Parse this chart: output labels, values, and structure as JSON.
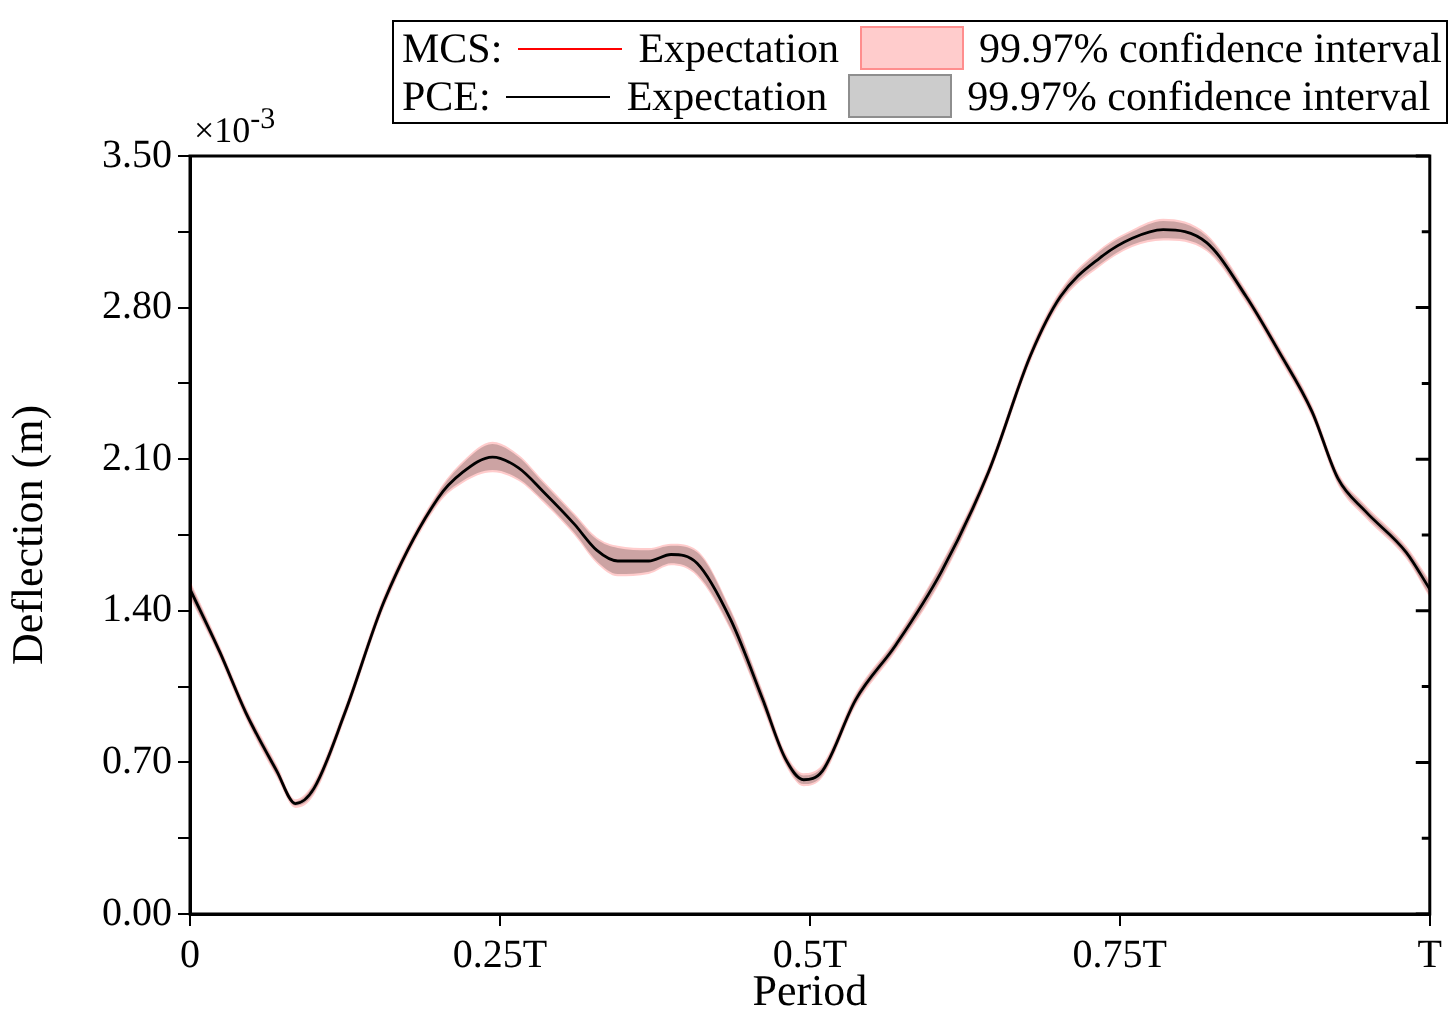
{
  "chart_data": {
    "type": "line",
    "xlabel": "Period",
    "ylabel": "Deflection (m)",
    "annotations": [
      "×10$^{-3}$",
      "Expectation",
      "99.97% confidence interval",
      "Expectation",
      "99.97% confidence interval"
    ],
    "legend": "top",
    "grid": false,
    "xlim": [
      0,
      1
    ],
    "xticks": [
      {
        "value": 0,
        "label": "0"
      },
      {
        "value": 0.25,
        "label": "0.25T"
      },
      {
        "value": 0.5,
        "label": "0.5T"
      },
      {
        "value": 0.75,
        "label": "0.75T"
      },
      {
        "value": 1,
        "label": "T"
      }
    ],
    "ylim": [
      0,
      3.5
    ],
    "yticks": [
      {
        "value": 0,
        "label": "0.00"
      },
      {
        "value": 0.35,
        "label": null
      },
      {
        "value": 0.7,
        "label": "0.70"
      },
      {
        "value": 1.05,
        "label": null
      },
      {
        "value": 1.4,
        "label": "1.40"
      },
      {
        "value": 1.75,
        "label": null
      },
      {
        "value": 2.1,
        "label": "2.10"
      },
      {
        "value": 2.45,
        "label": null
      },
      {
        "value": 2.8,
        "label": "2.80"
      },
      {
        "value": 3.15,
        "label": null
      },
      {
        "value": 3.5,
        "label": "3.50"
      }
    ],
    "x": [
      0,
      0.024,
      0.045,
      0.07,
      0.085,
      0.1,
      0.125,
      0.157,
      0.2,
      0.22,
      0.244,
      0.265,
      0.285,
      0.31,
      0.328,
      0.345,
      0.37,
      0.388,
      0.409,
      0.436,
      0.462,
      0.48,
      0.495,
      0.51,
      0.537,
      0.569,
      0.606,
      0.644,
      0.678,
      0.702,
      0.734,
      0.76,
      0.785,
      0.82,
      0.852,
      0.878,
      0.905,
      0.926,
      0.948,
      0.981,
      1
    ],
    "series": [
      {
        "name": "MCS:",
        "color": "#ff0000",
        "values": [
          null,
          null,
          null,
          null,
          null,
          null,
          null,
          null,
          null,
          null,
          null,
          null,
          null,
          null,
          null,
          null,
          null,
          null,
          null,
          null,
          null,
          null,
          null,
          null,
          null,
          null,
          null,
          null,
          null,
          null,
          null,
          null,
          null,
          null,
          null,
          null,
          null,
          null,
          null,
          null,
          null
        ],
        "lower": [
          1.46,
          1.18,
          0.9,
          0.63,
          0.49,
          0.55,
          0.9,
          1.42,
          1.89,
          1.99,
          2.04,
          2.0,
          1.9,
          1.75,
          1.62,
          1.56,
          1.57,
          1.61,
          1.56,
          1.31,
          0.95,
          0.69,
          0.59,
          0.63,
          0.96,
          1.21,
          1.54,
          2.01,
          2.55,
          2.82,
          2.99,
          3.08,
          3.11,
          3.06,
          2.82,
          2.57,
          2.29,
          1.98,
          1.83,
          1.64,
          1.46
        ],
        "upper": [
          1.54,
          1.24,
          0.96,
          0.69,
          0.53,
          0.61,
          0.96,
          1.48,
          1.95,
          2.09,
          2.18,
          2.12,
          2.0,
          1.85,
          1.74,
          1.7,
          1.69,
          1.71,
          1.68,
          1.41,
          1.03,
          0.75,
          0.65,
          0.69,
          1.02,
          1.27,
          1.62,
          2.07,
          2.61,
          2.88,
          3.07,
          3.16,
          3.21,
          3.14,
          2.88,
          2.63,
          2.35,
          2.04,
          1.89,
          1.7,
          1.54
        ]
      },
      {
        "name": "PCE:",
        "color": "#000000",
        "values": [
          1.5,
          1.21,
          0.93,
          0.66,
          0.51,
          0.58,
          0.93,
          1.45,
          1.92,
          2.04,
          2.11,
          2.06,
          1.95,
          1.8,
          1.68,
          1.63,
          1.63,
          1.66,
          1.62,
          1.36,
          0.99,
          0.72,
          0.62,
          0.66,
          0.99,
          1.24,
          1.58,
          2.04,
          2.58,
          2.85,
          3.03,
          3.12,
          3.16,
          3.1,
          2.85,
          2.6,
          2.32,
          2.01,
          1.86,
          1.67,
          1.5
        ],
        "lower": [
          1.47,
          1.19,
          0.91,
          0.64,
          0.5,
          0.56,
          0.91,
          1.43,
          1.9,
          2.0,
          2.05,
          2.01,
          1.91,
          1.76,
          1.63,
          1.57,
          1.58,
          1.62,
          1.57,
          1.32,
          0.96,
          0.7,
          0.6,
          0.64,
          0.97,
          1.22,
          1.55,
          2.02,
          2.56,
          2.83,
          3.0,
          3.09,
          3.12,
          3.07,
          2.83,
          2.58,
          2.3,
          1.99,
          1.84,
          1.65,
          1.47
        ],
        "upper": [
          1.53,
          1.23,
          0.95,
          0.68,
          0.52,
          0.6,
          0.95,
          1.47,
          1.94,
          2.08,
          2.17,
          2.11,
          1.99,
          1.84,
          1.73,
          1.69,
          1.68,
          1.7,
          1.67,
          1.4,
          1.02,
          0.74,
          0.64,
          0.68,
          1.01,
          1.26,
          1.61,
          2.06,
          2.6,
          2.87,
          3.06,
          3.15,
          3.2,
          3.13,
          2.87,
          2.62,
          2.34,
          2.03,
          1.88,
          1.69,
          1.53
        ]
      }
    ]
  }
}
